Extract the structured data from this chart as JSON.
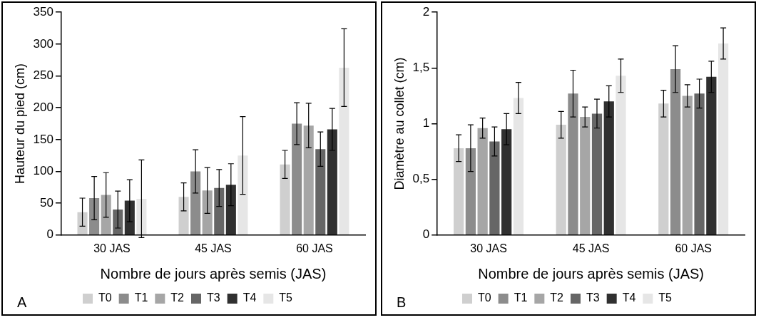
{
  "chart_data": [
    {
      "type": "bar",
      "ylabel": "Hauteur du pied (cm)",
      "xlabel": "Nombre de jours après semis (JAS)",
      "annotations": [
        "A"
      ],
      "categories": [
        "30 JAS",
        "45 JAS",
        "60 JAS"
      ],
      "ylim": [
        0,
        350
      ],
      "yticks": [
        0,
        50,
        100,
        150,
        200,
        250,
        300,
        350
      ],
      "grid": false,
      "legend": "bottom",
      "series": [
        {
          "name": "T0",
          "color": "#cfcfcf",
          "values": [
            36,
            60,
            111
          ],
          "errors": [
            22,
            22,
            22
          ]
        },
        {
          "name": "T1",
          "color": "#8c8c8c",
          "values": [
            58,
            100,
            175
          ],
          "errors": [
            34,
            34,
            33
          ]
        },
        {
          "name": "T2",
          "color": "#a6a6a6",
          "values": [
            63,
            70,
            172
          ],
          "errors": [
            35,
            36,
            35
          ]
        },
        {
          "name": "T3",
          "color": "#666666",
          "values": [
            40,
            74,
            135
          ],
          "errors": [
            29,
            29,
            27
          ]
        },
        {
          "name": "T4",
          "color": "#303030",
          "values": [
            54,
            79,
            166
          ],
          "errors": [
            33,
            33,
            33
          ]
        },
        {
          "name": "T5",
          "color": "#e6e6e6",
          "values": [
            57,
            125,
            263
          ],
          "errors": [
            61,
            61,
            61
          ]
        }
      ]
    },
    {
      "type": "bar",
      "ylabel": "Diamètre au collet (cm)",
      "xlabel": "Nombre de jours après semis (JAS)",
      "annotations": [
        "B"
      ],
      "categories": [
        "30 JAS",
        "45 JAS",
        "60 JAS"
      ],
      "ylim": [
        0,
        2
      ],
      "yticks": [
        0,
        {
          "value": 0.5,
          "label": "0,5"
        },
        1,
        {
          "value": 1.5,
          "label": "1,5"
        },
        2
      ],
      "grid": false,
      "legend": "bottom",
      "series": [
        {
          "name": "T0",
          "color": "#cfcfcf",
          "values": [
            0.78,
            0.99,
            1.18
          ],
          "errors": [
            0.12,
            0.12,
            0.12
          ]
        },
        {
          "name": "T1",
          "color": "#8c8c8c",
          "values": [
            0.78,
            1.27,
            1.49
          ],
          "errors": [
            0.21,
            0.21,
            0.21
          ]
        },
        {
          "name": "T2",
          "color": "#a6a6a6",
          "values": [
            0.96,
            1.06,
            1.25
          ],
          "errors": [
            0.09,
            0.09,
            0.1
          ]
        },
        {
          "name": "T3",
          "color": "#666666",
          "values": [
            0.84,
            1.09,
            1.27
          ],
          "errors": [
            0.13,
            0.13,
            0.13
          ]
        },
        {
          "name": "T4",
          "color": "#303030",
          "values": [
            0.95,
            1.2,
            1.42
          ],
          "errors": [
            0.14,
            0.14,
            0.14
          ]
        },
        {
          "name": "T5",
          "color": "#e6e6e6",
          "values": [
            1.23,
            1.43,
            1.72
          ],
          "errors": [
            0.14,
            0.15,
            0.14
          ]
        }
      ]
    }
  ]
}
